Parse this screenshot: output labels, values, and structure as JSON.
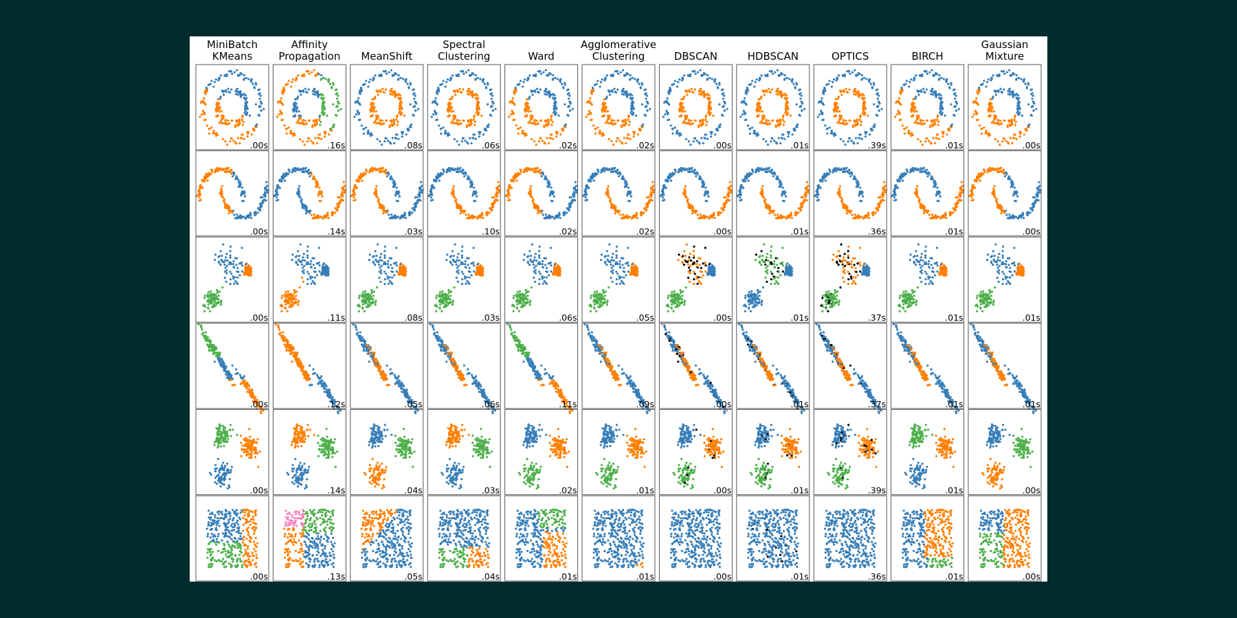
{
  "chart_data": {
    "type": "scatter",
    "algorithms": [
      {
        "key": "minibatch_kmeans",
        "title": [
          "MiniBatch",
          "KMeans"
        ]
      },
      {
        "key": "affinity_propagation",
        "title": [
          "Affinity",
          "Propagation"
        ]
      },
      {
        "key": "meanshift",
        "title": [
          "MeanShift"
        ]
      },
      {
        "key": "spectral",
        "title": [
          "Spectral",
          "Clustering"
        ]
      },
      {
        "key": "ward",
        "title": [
          "Ward"
        ]
      },
      {
        "key": "agglomerative",
        "title": [
          "Agglomerative",
          "Clustering"
        ]
      },
      {
        "key": "dbscan",
        "title": [
          "DBSCAN"
        ]
      },
      {
        "key": "hdbscan",
        "title": [
          "HDBSCAN"
        ]
      },
      {
        "key": "optics",
        "title": [
          "OPTICS"
        ]
      },
      {
        "key": "birch",
        "title": [
          "BIRCH"
        ]
      },
      {
        "key": "gmm",
        "title": [
          "Gaussian",
          "Mixture"
        ]
      }
    ],
    "datasets": [
      "noisy_circles",
      "noisy_moons",
      "varied",
      "aniso",
      "blobs",
      "no_structure"
    ],
    "times": [
      [
        ".00s",
        ".16s",
        ".08s",
        ".06s",
        ".02s",
        ".02s",
        ".00s",
        ".01s",
        ".39s",
        ".01s",
        ".00s"
      ],
      [
        ".00s",
        ".14s",
        ".03s",
        ".10s",
        ".02s",
        ".02s",
        ".00s",
        ".01s",
        ".36s",
        ".01s",
        ".00s"
      ],
      [
        ".00s",
        ".11s",
        ".08s",
        ".03s",
        ".06s",
        ".05s",
        ".00s",
        ".01s",
        ".37s",
        ".01s",
        ".01s"
      ],
      [
        ".00s",
        ".12s",
        ".05s",
        ".06s",
        ".11s",
        ".09s",
        ".00s",
        ".01s",
        ".37s",
        ".01s",
        ".01s"
      ],
      [
        ".00s",
        ".14s",
        ".04s",
        ".03s",
        ".02s",
        ".01s",
        ".00s",
        ".01s",
        ".39s",
        ".01s",
        ".00s"
      ],
      [
        ".00s",
        ".13s",
        ".05s",
        ".04s",
        ".01s",
        ".01s",
        ".00s",
        ".01s",
        ".36s",
        ".01s",
        ".00s"
      ]
    ],
    "cluster_colors": [
      "#377eb8",
      "#ff7f00",
      "#4daf4a",
      "#f781bf"
    ],
    "noise_color": "#000000",
    "xlim": [
      -2.5,
      2.5
    ],
    "ylim": [
      -2.5,
      2.5
    ],
    "axes_visible": false,
    "grid": false
  }
}
